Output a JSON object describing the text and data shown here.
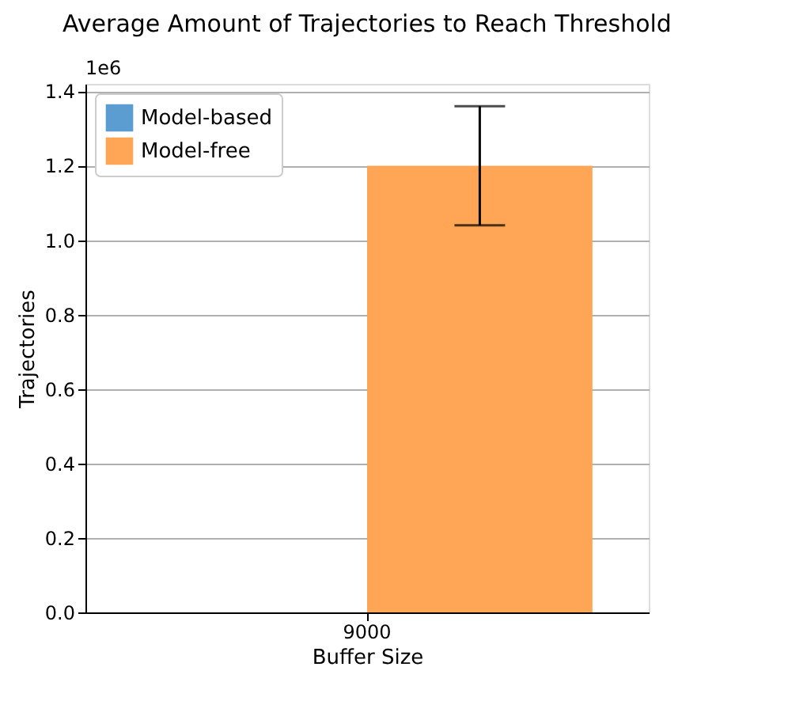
{
  "chart_data": {
    "type": "bar",
    "title": "Average Amount of Trajectories to Reach Threshold",
    "xlabel": "Buffer Size",
    "ylabel": "Trajectories",
    "annotations": [
      "1e6"
    ],
    "categories": [
      "9000"
    ],
    "series": [
      {
        "name": "Model-based",
        "color": "#5b9dd0",
        "values": [
          null
        ]
      },
      {
        "name": "Model-free",
        "color": "#ffa556",
        "values": [
          1.2
        ],
        "errors": [
          [
            1.04,
            1.36
          ]
        ]
      }
    ],
    "ylim": [
      0,
      1.42
    ],
    "yticks": [
      {
        "value": 0,
        "label": "0.0"
      },
      0.2,
      0.4,
      0.6,
      0.8,
      {
        "value": 1,
        "label": "1.0"
      },
      1.2,
      1.4
    ],
    "grid": "y",
    "legend": "top left"
  }
}
